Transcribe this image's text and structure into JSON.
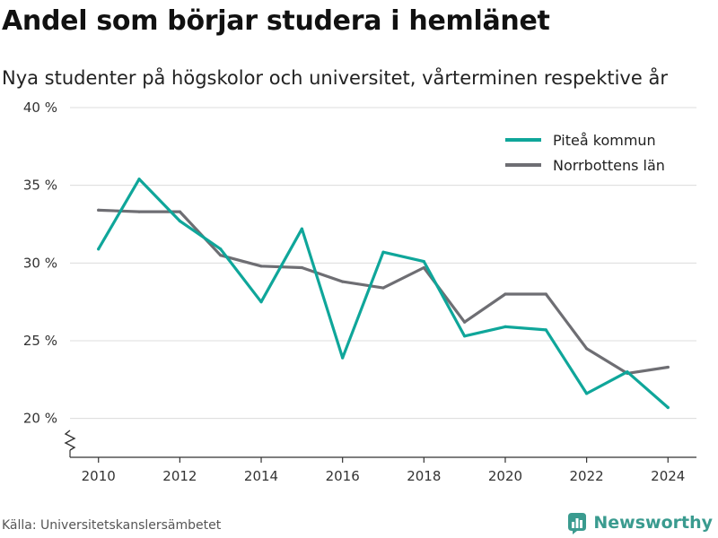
{
  "header": {
    "title": "Andel som börjar studera i hemlänet",
    "subtitle": "Nya studenter på högskolor och universitet, vårterminen respektive år"
  },
  "footer": {
    "source": "Källa: Universitetskanslersämbetet",
    "brand": "Newsworthy",
    "brand_icon": "bar-chart-icon",
    "brand_color": "#3a9b8f"
  },
  "chart_data": {
    "type": "line",
    "title": "Andel som börjar studera i hemlänet",
    "subtitle": "Nya studenter på högskolor och universitet, vårterminen respektive år",
    "xlabel": "",
    "ylabel": "",
    "x": [
      2010,
      2011,
      2012,
      2013,
      2014,
      2015,
      2016,
      2017,
      2018,
      2019,
      2020,
      2021,
      2022,
      2023,
      2024
    ],
    "xlim": [
      2009.3,
      2024.7
    ],
    "xticks": [
      2010,
      2012,
      2014,
      2016,
      2018,
      2020,
      2022,
      2024
    ],
    "ylim": [
      17.5,
      40
    ],
    "yticks": [
      20,
      25,
      30,
      35,
      40
    ],
    "ytick_labels": [
      "20 %",
      "25 %",
      "30 %",
      "35 %",
      "40 %"
    ],
    "axis_break": true,
    "grid": "horizontal",
    "legend_position": "top-right",
    "series": [
      {
        "name": "Piteå kommun",
        "color": "#0fa69a",
        "values": [
          30.9,
          35.4,
          32.7,
          30.9,
          27.5,
          32.2,
          23.9,
          30.7,
          30.1,
          25.3,
          25.9,
          25.7,
          21.6,
          23.0,
          20.7
        ]
      },
      {
        "name": "Norrbottens län",
        "color": "#6e6e73",
        "values": [
          33.4,
          33.3,
          33.3,
          30.5,
          29.8,
          29.7,
          28.8,
          28.4,
          29.7,
          26.2,
          28.0,
          28.0,
          24.5,
          22.9,
          23.3
        ]
      }
    ]
  }
}
